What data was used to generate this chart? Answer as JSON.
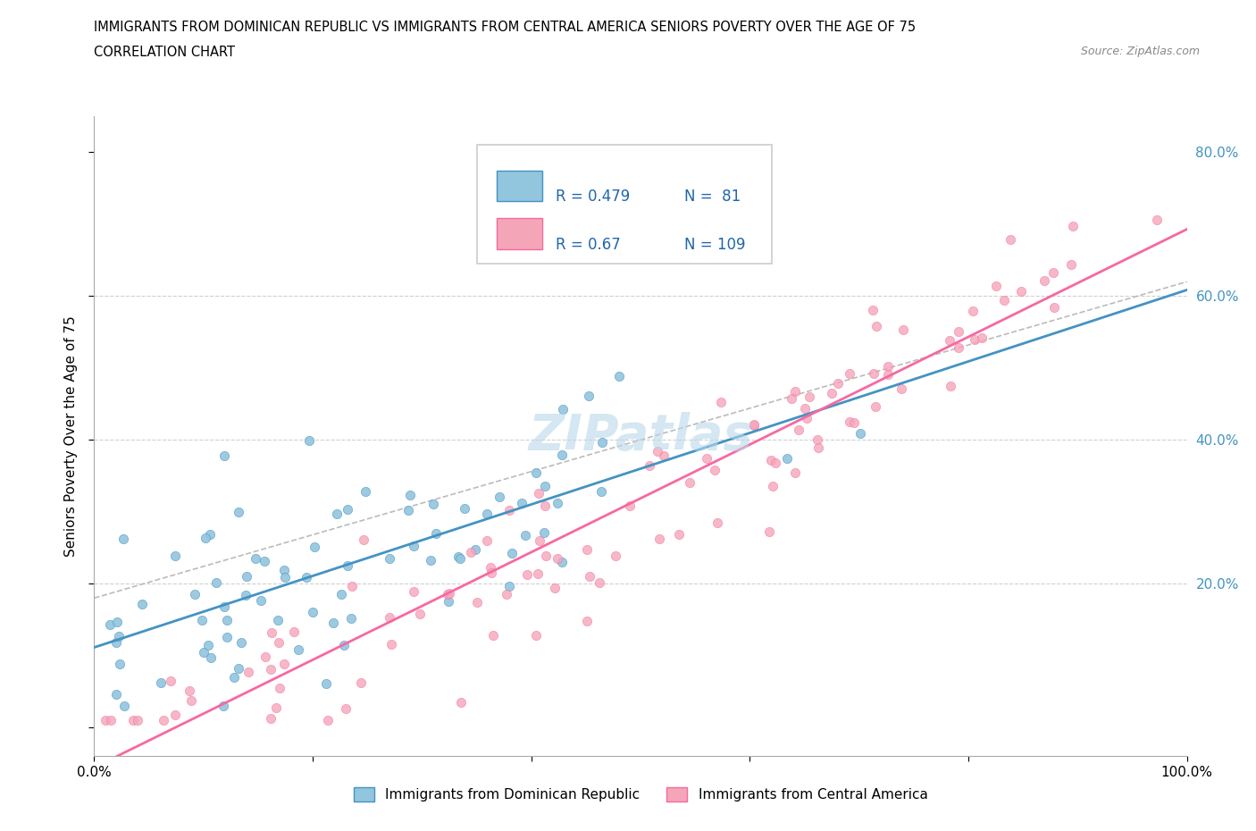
{
  "title_line1": "IMMIGRANTS FROM DOMINICAN REPUBLIC VS IMMIGRANTS FROM CENTRAL AMERICA SENIORS POVERTY OVER THE AGE OF 75",
  "title_line2": "CORRELATION CHART",
  "source_text": "Source: ZipAtlas.com",
  "ylabel": "Seniors Poverty Over the Age of 75",
  "xlim": [
    0.0,
    1.0
  ],
  "ylim": [
    -0.04,
    0.85
  ],
  "color_blue": "#92c5de",
  "color_pink": "#f4a6b8",
  "line_blue": "#4393c3",
  "line_pink": "#f768a1",
  "R_blue": 0.479,
  "N_blue": 81,
  "R_pink": 0.67,
  "N_pink": 109,
  "legend_label_blue": "Immigrants from Dominican Republic",
  "legend_label_pink": "Immigrants from Central America",
  "right_tick_color": "#4393c3",
  "watermark_color": "#b8d8ea",
  "grid_color": "#d0d0d0"
}
